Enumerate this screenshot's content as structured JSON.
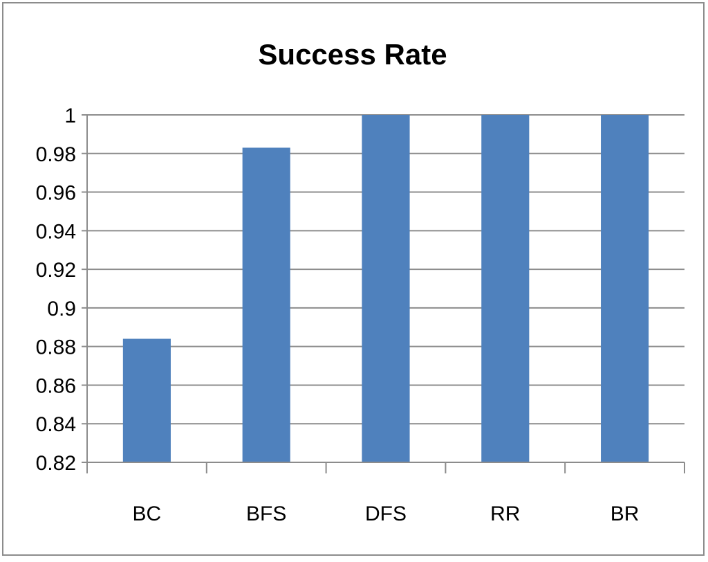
{
  "chart_data": {
    "type": "bar",
    "title": "Success Rate",
    "categories": [
      "BC",
      "BFS",
      "DFS",
      "RR",
      "BR"
    ],
    "values": [
      0.884,
      0.983,
      1.0,
      1.0,
      1.0
    ],
    "ylim": [
      0.82,
      1.0
    ],
    "yticks": [
      "0.82",
      "0.84",
      "0.86",
      "0.88",
      "0.9",
      "0.92",
      "0.94",
      "0.96",
      "0.98",
      "1"
    ],
    "grid": true,
    "legend": "none",
    "bar_color": "#4f81bd",
    "grid_color": "#8c8c8c"
  }
}
